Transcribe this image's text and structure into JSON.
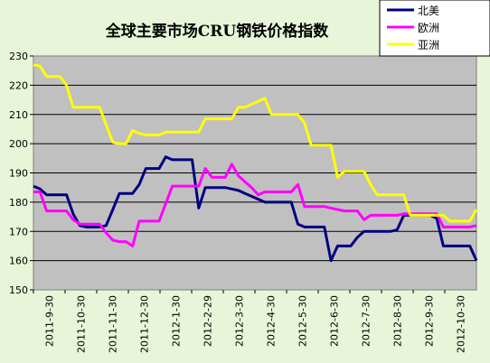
{
  "chart_data": {
    "type": "line",
    "title": "全球主要市场CRU钢铁价格指数",
    "ylim": [
      150,
      230
    ],
    "yticks": [
      "150",
      "160",
      "170",
      "180",
      "190",
      "200",
      "210",
      "220",
      "230"
    ],
    "xticks": [
      "2011-9-30",
      "2011-10-30",
      "2011-11-30",
      "2011-12-30",
      "2012-1-30",
      "2012-2-29",
      "2012-3-30",
      "2012-4-30",
      "2012-5-30",
      "2012-6-30",
      "2012-7-30",
      "2012-8-30",
      "2012-9-30",
      "2012-10-30"
    ],
    "grid": "horizontal",
    "legend_position": "top-right",
    "series": [
      {
        "name": "北美",
        "color": "#000080",
        "values": [
          185.5,
          184.5,
          182.5,
          182.5,
          182.5,
          182.5,
          176.0,
          172.0,
          171.5,
          171.5,
          171.5,
          172.0,
          177.5,
          183.0,
          183.0,
          183.0,
          186.0,
          191.5,
          191.5,
          191.5,
          195.5,
          194.5,
          194.5,
          194.5,
          194.5,
          178.0,
          185.0,
          185.0,
          185.0,
          185.0,
          184.5,
          184.0,
          183.0,
          182.0,
          181.0,
          180.0,
          180.0,
          180.0,
          180.0,
          180.0,
          172.5,
          171.5,
          171.5,
          171.5,
          171.5,
          160.0,
          165.0,
          165.0,
          165.0,
          168.0,
          170.0,
          170.0,
          170.0,
          170.0,
          170.0,
          170.5,
          175.5,
          175.5,
          175.5,
          175.5,
          175.5,
          174.5,
          165.0,
          165.0,
          165.0,
          165.0,
          165.0,
          160.0
        ]
      },
      {
        "name": "欧洲",
        "color": "#ff00ff",
        "values": [
          183.5,
          183.5,
          177.0,
          177.0,
          177.0,
          177.0,
          174.0,
          172.5,
          172.5,
          172.5,
          172.5,
          169.5,
          167.0,
          166.5,
          166.5,
          165.0,
          173.5,
          173.5,
          173.5,
          173.5,
          179.5,
          185.5,
          185.5,
          185.5,
          185.5,
          185.5,
          191.5,
          188.5,
          188.5,
          188.5,
          193.0,
          189.0,
          187.0,
          185.0,
          182.5,
          183.5,
          183.5,
          183.5,
          183.5,
          183.5,
          186.0,
          178.5,
          178.5,
          178.5,
          178.5,
          178.0,
          177.5,
          177.0,
          177.0,
          177.0,
          174.0,
          175.5,
          175.5,
          175.5,
          175.5,
          175.5,
          176.0,
          176.0,
          176.0,
          176.0,
          176.0,
          176.0,
          171.5,
          171.5,
          171.5,
          171.5,
          171.5,
          172.0
        ]
      },
      {
        "name": "亚洲",
        "color": "#ffff00",
        "values": [
          227.0,
          226.5,
          223.0,
          223.0,
          223.0,
          220.0,
          212.5,
          212.5,
          212.5,
          212.5,
          212.5,
          206.5,
          200.5,
          200.0,
          200.0,
          204.5,
          203.5,
          203.0,
          203.0,
          203.0,
          204.0,
          204.0,
          204.0,
          204.0,
          204.0,
          204.0,
          208.5,
          208.5,
          208.5,
          208.5,
          208.5,
          212.5,
          212.5,
          213.5,
          214.5,
          215.5,
          210.0,
          210.0,
          210.0,
          210.0,
          210.0,
          207.0,
          199.5,
          199.5,
          199.5,
          199.5,
          188.5,
          190.5,
          190.5,
          190.5,
          190.5,
          186.0,
          182.5,
          182.5,
          182.5,
          182.5,
          182.5,
          175.5,
          175.5,
          175.5,
          175.5,
          175.5,
          175.5,
          173.5,
          173.5,
          173.5,
          173.5,
          177.5
        ]
      }
    ]
  }
}
